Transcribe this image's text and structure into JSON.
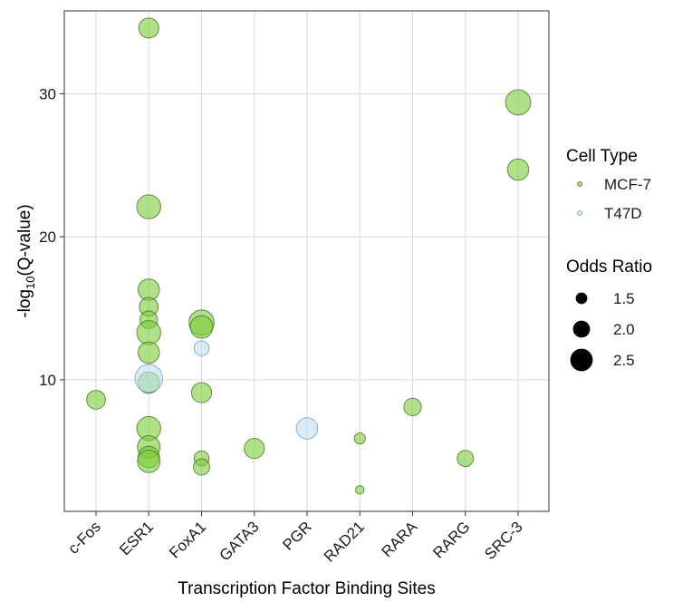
{
  "chart_data": {
    "type": "scatter",
    "xlabel": "Transcription Factor Binding Sites",
    "ylabel": "-log10(Q-value)",
    "ylabel_base": "-log",
    "ylabel_sub": "10",
    "ylabel_rest": "(Q-value)",
    "categories": [
      "c-Fos",
      "ESR1",
      "FoxA1",
      "GATA3",
      "PGR",
      "RAD21",
      "RARA",
      "RARG",
      "SRC-3"
    ],
    "ylim": [
      0.8,
      35.8
    ],
    "yticks": [
      10,
      20,
      30
    ],
    "ytick_labels": [
      "10",
      "20",
      "30"
    ],
    "grid": true,
    "legend_placement": "right",
    "colors": {
      "MCF-7": "#7ccd3a",
      "T47D": "#bfe0f2",
      "MCF-7_stroke": "#4b7a2a",
      "T47D_stroke": "#7aa3bd"
    },
    "legend": {
      "color_title": "Cell Type",
      "color_entries": [
        "MCF-7",
        "T47D"
      ],
      "size_title": "Odds Ratio",
      "size_entries": [
        {
          "label": "1.5",
          "value": 1.5
        },
        {
          "label": "2.0",
          "value": 2.0
        },
        {
          "label": "2.5",
          "value": 2.5
        }
      ]
    },
    "size_scale": {
      "min_value": 1.0,
      "max_value": 2.7
    },
    "series": [
      {
        "name": "MCF-7",
        "points": [
          {
            "x": "c-Fos",
            "y": 8.6,
            "size": 1.9
          },
          {
            "x": "ESR1",
            "y": 34.6,
            "size": 2.0
          },
          {
            "x": "ESR1",
            "y": 22.1,
            "size": 2.3
          },
          {
            "x": "ESR1",
            "y": 16.3,
            "size": 2.1
          },
          {
            "x": "ESR1",
            "y": 15.1,
            "size": 1.9
          },
          {
            "x": "ESR1",
            "y": 14.2,
            "size": 1.8
          },
          {
            "x": "ESR1",
            "y": 13.3,
            "size": 2.3
          },
          {
            "x": "ESR1",
            "y": 11.9,
            "size": 2.1
          },
          {
            "x": "ESR1",
            "y": 9.8,
            "size": 2.1
          },
          {
            "x": "ESR1",
            "y": 6.6,
            "size": 2.3
          },
          {
            "x": "ESR1",
            "y": 5.3,
            "size": 2.2
          },
          {
            "x": "ESR1",
            "y": 4.6,
            "size": 2.1
          },
          {
            "x": "ESR1",
            "y": 4.3,
            "size": 2.2
          },
          {
            "x": "FoxA1",
            "y": 14.0,
            "size": 2.4
          },
          {
            "x": "FoxA1",
            "y": 13.7,
            "size": 2.2
          },
          {
            "x": "FoxA1",
            "y": 9.1,
            "size": 2.0
          },
          {
            "x": "FoxA1",
            "y": 4.5,
            "size": 1.6
          },
          {
            "x": "FoxA1",
            "y": 3.9,
            "size": 1.7
          },
          {
            "x": "GATA3",
            "y": 5.2,
            "size": 2.0
          },
          {
            "x": "RAD21",
            "y": 5.9,
            "size": 1.3
          },
          {
            "x": "RAD21",
            "y": 2.3,
            "size": 1.1
          },
          {
            "x": "RARA",
            "y": 8.1,
            "size": 1.8
          },
          {
            "x": "RARG",
            "y": 4.5,
            "size": 1.7
          },
          {
            "x": "SRC-3",
            "y": 29.4,
            "size": 2.4
          },
          {
            "x": "SRC-3",
            "y": 24.7,
            "size": 2.1
          }
        ]
      },
      {
        "name": "T47D",
        "points": [
          {
            "x": "ESR1",
            "y": 10.1,
            "size": 2.6
          },
          {
            "x": "FoxA1",
            "y": 12.2,
            "size": 1.6
          },
          {
            "x": "PGR",
            "y": 6.6,
            "size": 2.1
          }
        ]
      }
    ]
  }
}
